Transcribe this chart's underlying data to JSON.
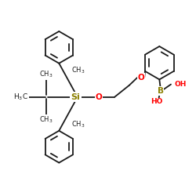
{
  "background": "#ffffff",
  "line_color": "#1a1a1a",
  "si_color": "#8b8000",
  "o_color": "#ff0000",
  "b_color": "#8b8000",
  "lw": 1.3,
  "fs": 6.5,
  "fig_w": 2.5,
  "fig_h": 2.5,
  "dpi": 100,
  "xlim": [
    0,
    10
  ],
  "ylim": [
    0,
    10
  ]
}
